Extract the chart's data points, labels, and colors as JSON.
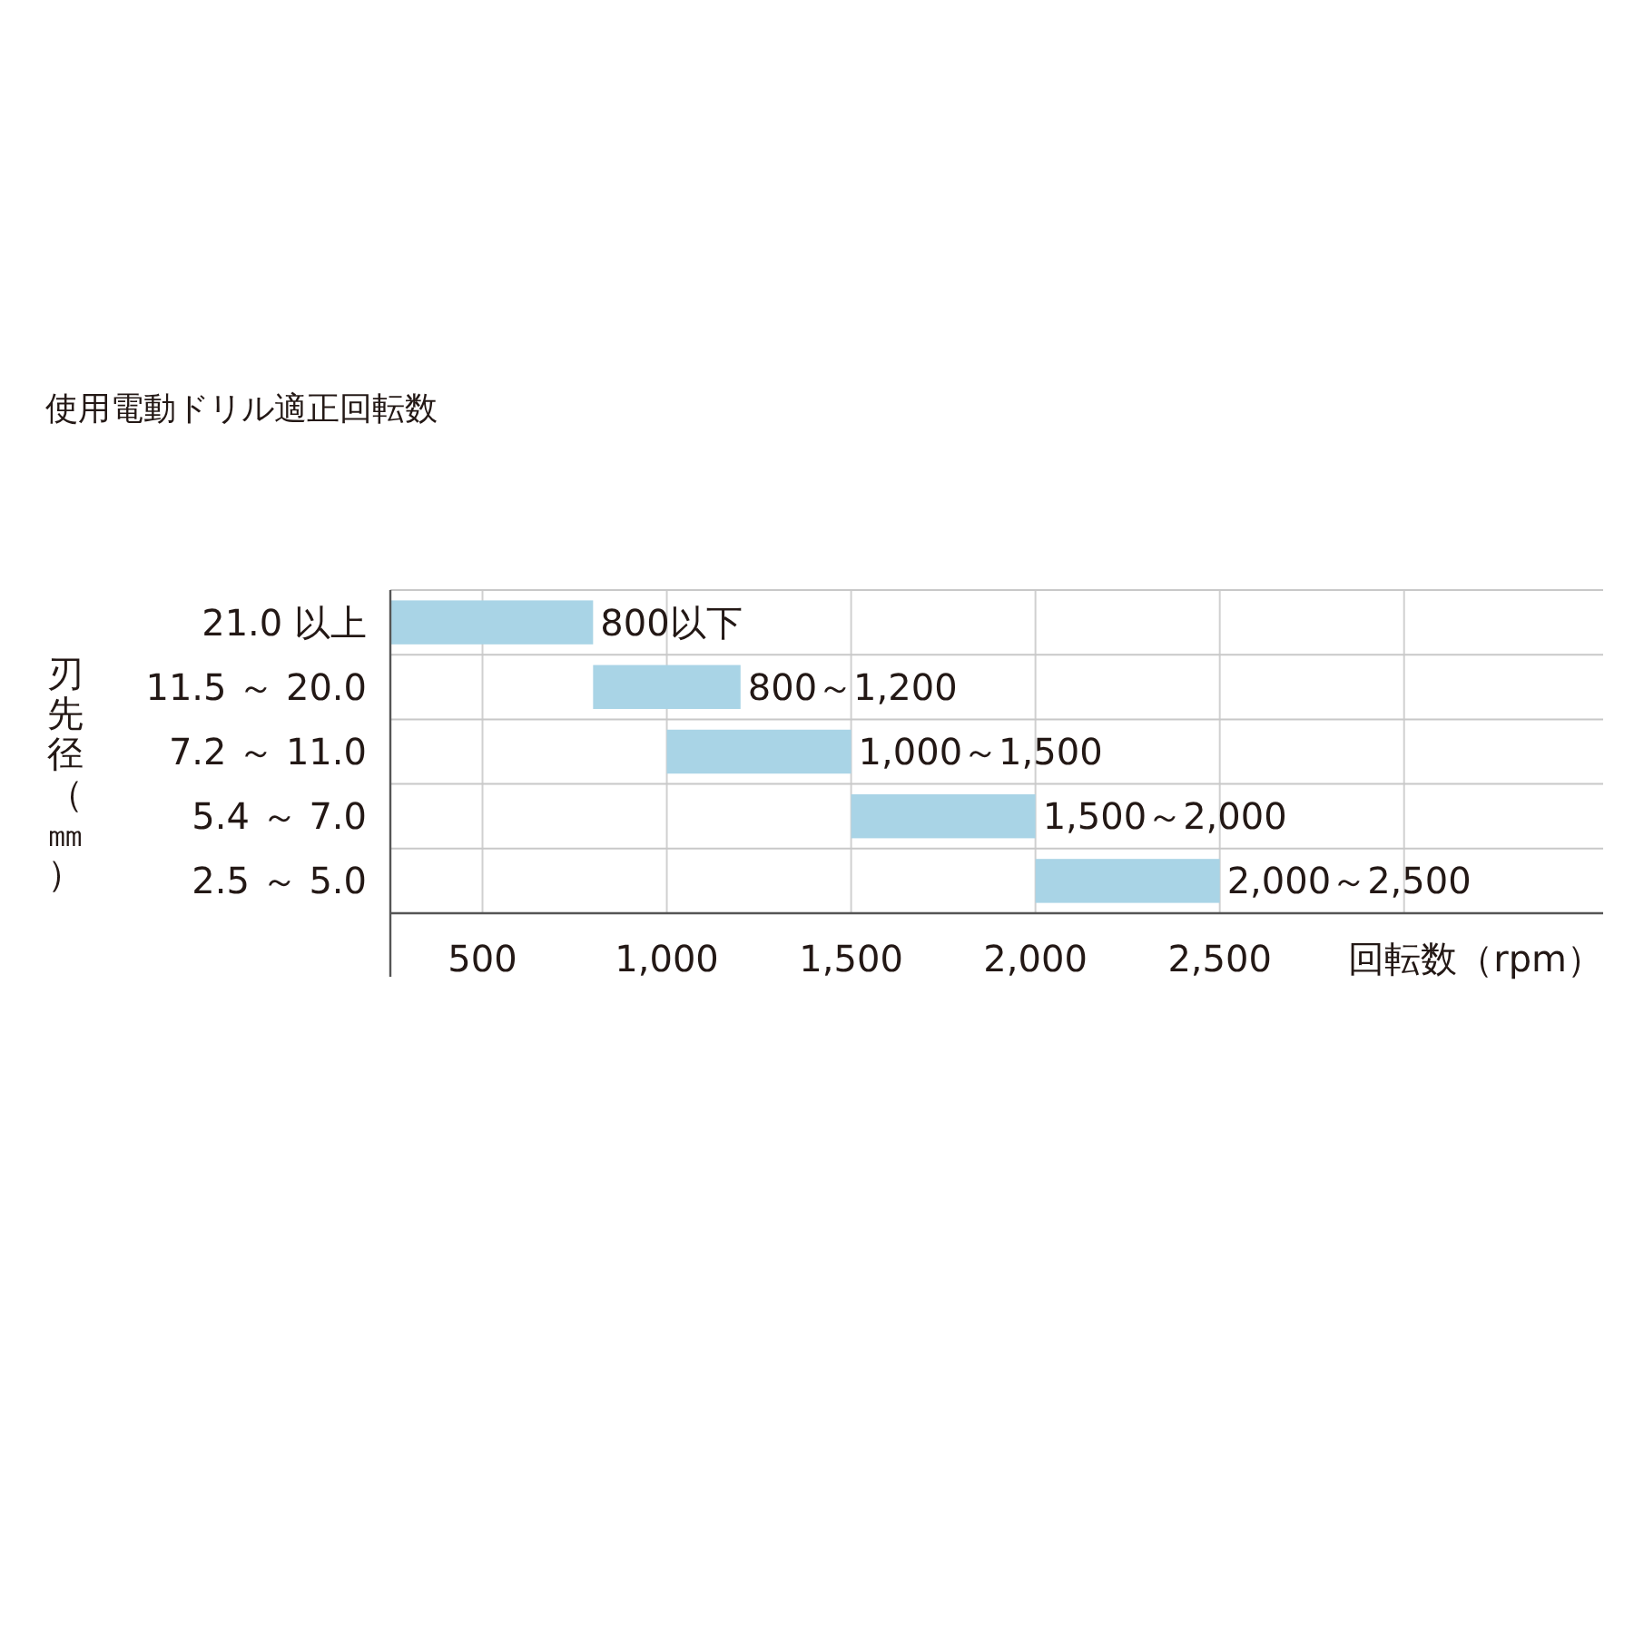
{
  "chart_data": {
    "type": "bar",
    "orientation": "horizontal",
    "title": "使用電動ドリル適正回転数",
    "ylabel": "刃先径（㎜）",
    "xlabel": "回転数（rpm）",
    "categories": [
      "21.0 以上",
      "11.5 ～ 20.0",
      "7.2 ～ 11.0",
      "5.4 ～ 7.0",
      "2.5 ～ 5.0"
    ],
    "base": [
      250,
      800,
      1000,
      1500,
      2000
    ],
    "values": [
      550,
      400,
      500,
      500,
      500
    ],
    "annotations": [
      {
        "text": "800以下",
        "x": 800,
        "y": "21.0 以上"
      },
      {
        "text": "800～1,200",
        "x": 1200,
        "y": "11.5 ～ 20.0"
      },
      {
        "text": "1,000～1,500",
        "x": 1500,
        "y": "7.2 ～ 11.0"
      },
      {
        "text": "1,500～2,000",
        "x": 2000,
        "y": "5.4 ～ 7.0"
      },
      {
        "text": "2,000～2,500",
        "x": 2500,
        "y": "2.5 ～ 5.0"
      }
    ],
    "color": "#a9d4e6",
    "xlim": [
      250,
      3540
    ],
    "xticks": [
      500,
      {
        "value": 1000,
        "label": "1,000"
      },
      {
        "value": 1500,
        "label": "1,500"
      },
      {
        "value": 2000,
        "label": "2,000"
      },
      {
        "value": 2500,
        "label": "2,500"
      },
      {
        "value": 3000,
        "label": null
      }
    ],
    "grid": true
  }
}
